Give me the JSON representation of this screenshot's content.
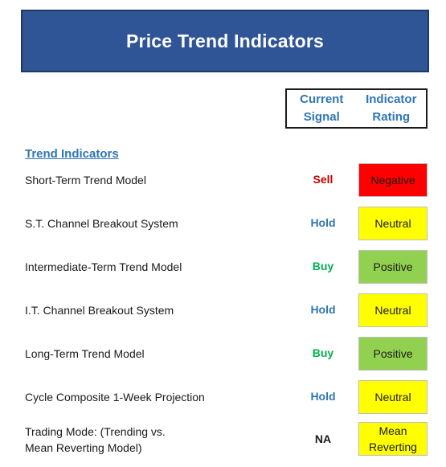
{
  "title": "Price Trend Indicators",
  "columns": {
    "signal": [
      "Current",
      "Signal"
    ],
    "rating": [
      "Indicator",
      "Rating"
    ]
  },
  "section": "Trend Indicators",
  "colors": {
    "header_bg": "#2f5597",
    "header_accent": "#2e75b6",
    "sell": "#c00000",
    "hold": "#2e75b6",
    "buy": "#00b050",
    "na": "#1a1a1a",
    "negative_bg": "#ff0000",
    "neutral_bg": "#ffff00",
    "positive_bg": "#92d050"
  },
  "rows": [
    {
      "label": "Short-Term Trend Model",
      "signal": "Sell",
      "rating": "Negative",
      "signal_color": "#c00000",
      "rating_bg": "#ff0000"
    },
    {
      "label": "S.T. Channel Breakout System",
      "signal": "Hold",
      "rating": "Neutral",
      "signal_color": "#2e75b6",
      "rating_bg": "#ffff00"
    },
    {
      "label": "Intermediate-Term Trend Model",
      "signal": "Buy",
      "rating": "Positive",
      "signal_color": "#00b050",
      "rating_bg": "#92d050"
    },
    {
      "label": "I.T. Channel Breakout System",
      "signal": "Hold",
      "rating": "Neutral",
      "signal_color": "#2e75b6",
      "rating_bg": "#ffff00"
    },
    {
      "label": "Long-Term Trend Model",
      "signal": "Buy",
      "rating": "Positive",
      "signal_color": "#00b050",
      "rating_bg": "#92d050"
    },
    {
      "label": "Cycle Composite 1-Week Projection",
      "signal": "Hold",
      "rating": "Neutral",
      "signal_color": "#2e75b6",
      "rating_bg": "#ffff00"
    },
    {
      "label": [
        "Trading Mode: (Trending vs.",
        "Mean Reverting Model)"
      ],
      "signal": "NA",
      "rating": [
        "Mean",
        "Reverting"
      ],
      "signal_color": "#1a1a1a",
      "rating_bg": "#ffff00"
    }
  ]
}
